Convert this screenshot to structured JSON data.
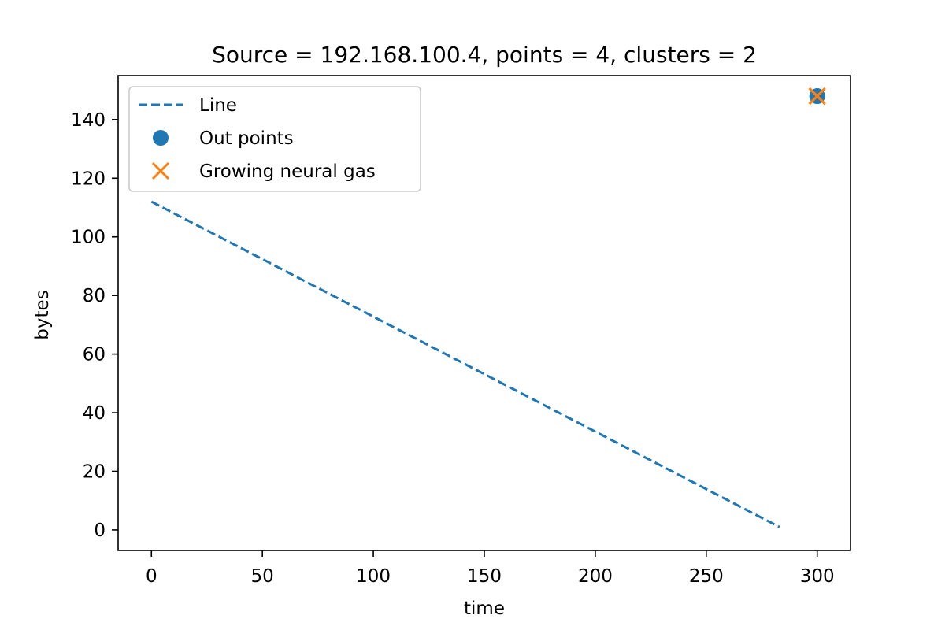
{
  "chart_data": {
    "type": "scatter",
    "title": "Source = 192.168.100.4, points = 4, clusters = 2",
    "xlabel": "time",
    "ylabel": "bytes",
    "xlim": [
      -15,
      315
    ],
    "ylim": [
      -7,
      155
    ],
    "xticks": [
      0,
      50,
      100,
      150,
      200,
      250,
      300
    ],
    "yticks": [
      0,
      20,
      40,
      60,
      80,
      100,
      120,
      140
    ],
    "grid": false,
    "legend_position": "top-left",
    "series": [
      {
        "name": "Line",
        "kind": "line",
        "style": "dashed",
        "color": "#1f77b4",
        "x": [
          0,
          283
        ],
        "y": [
          112,
          1
        ]
      },
      {
        "name": "Out points",
        "kind": "scatter",
        "marker": "circle",
        "color": "#1f77b4",
        "x": [
          300,
          300
        ],
        "y": [
          148,
          148
        ]
      },
      {
        "name": "Growing neural gas",
        "kind": "scatter",
        "marker": "x",
        "color": "#ff7f0e",
        "x": [
          300,
          300
        ],
        "y": [
          148,
          148
        ]
      }
    ]
  }
}
